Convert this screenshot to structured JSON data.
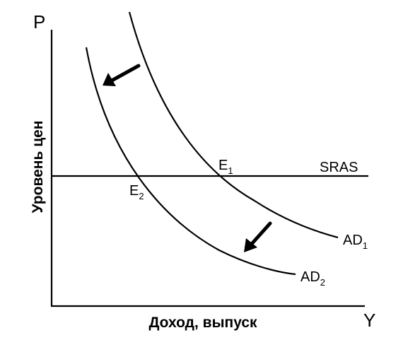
{
  "axes": {
    "y_letter": "P",
    "x_letter": "Y",
    "y_title": "Уровень цен",
    "x_title": "Доход, выпуск"
  },
  "curves": {
    "sras": "SRAS",
    "ad1": {
      "main": "AD",
      "sub": "1"
    },
    "ad2": {
      "main": "AD",
      "sub": "2"
    }
  },
  "points": {
    "e1": {
      "main": "E",
      "sub": "1"
    },
    "e2": {
      "main": "E",
      "sub": "2"
    }
  },
  "colors": {
    "ink": "#000000",
    "background": "#ffffff"
  },
  "icons": [
    "shift-arrow-icon",
    "shift-arrow-icon"
  ]
}
